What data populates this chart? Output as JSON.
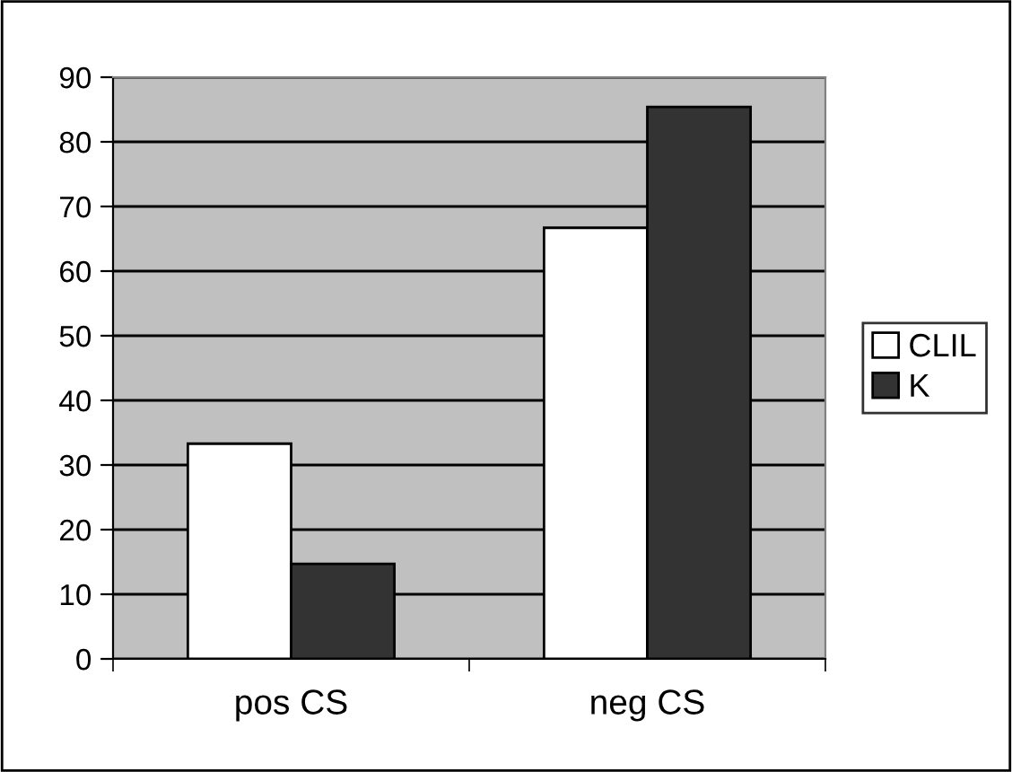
{
  "chart_data": {
    "type": "bar",
    "categories": [
      "pos CS",
      "neg CS"
    ],
    "series": [
      {
        "name": "CLIL",
        "color": "#ffffff",
        "values": [
          33.3,
          66.7
        ]
      },
      {
        "name": "K",
        "color": "#333333",
        "values": [
          14.7,
          85.4
        ]
      }
    ],
    "ylim": [
      0,
      90
    ],
    "yticks": [
      0,
      10,
      20,
      30,
      40,
      50,
      60,
      70,
      80,
      90
    ],
    "grid": "y",
    "legend": "right"
  }
}
